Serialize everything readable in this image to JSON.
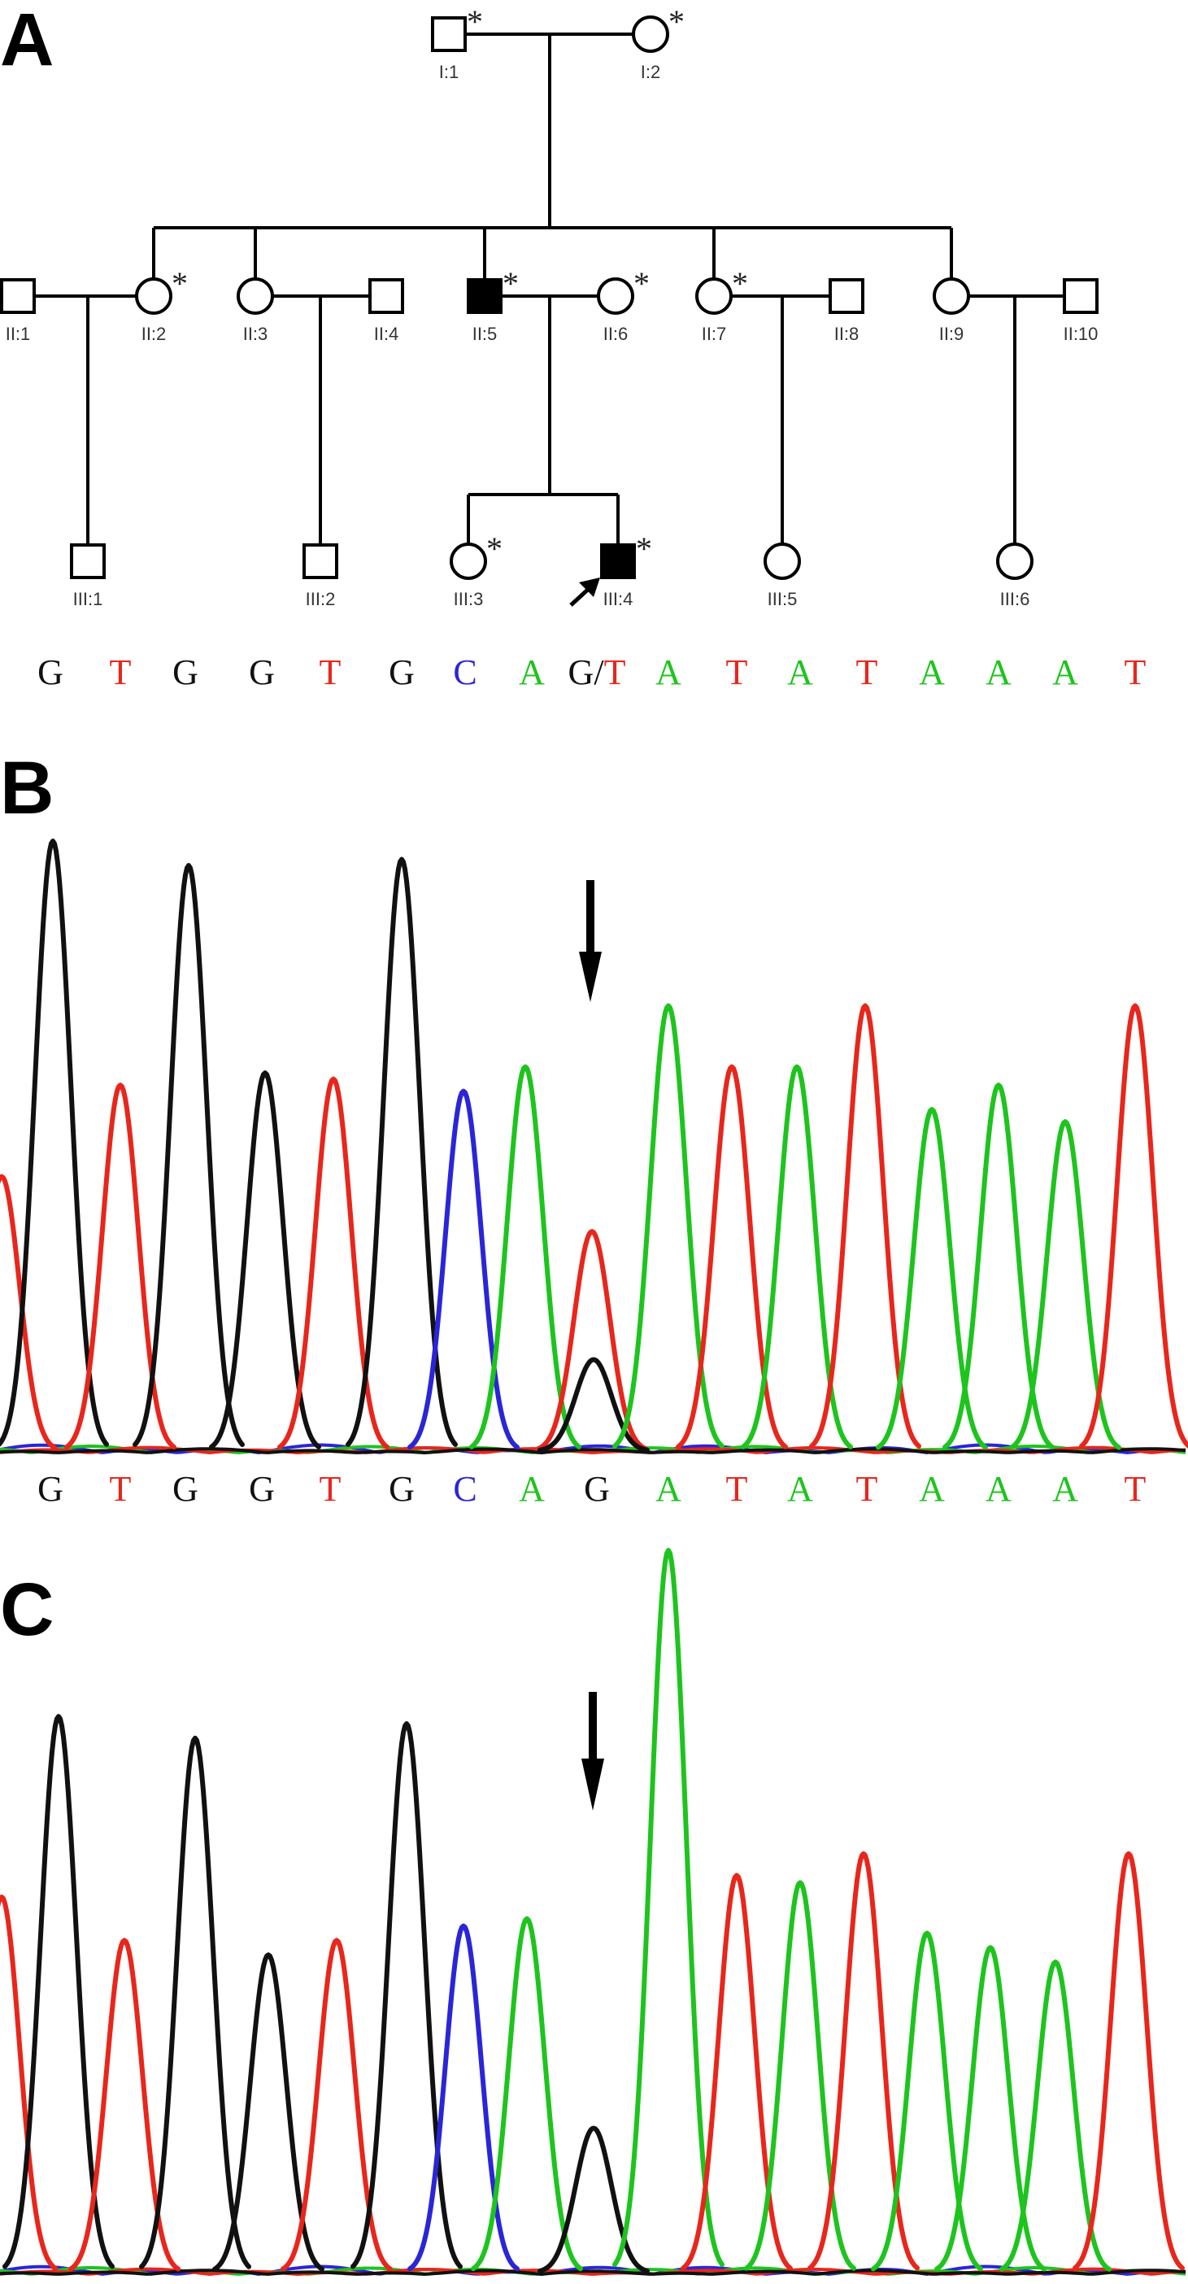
{
  "panels": {
    "a": "A",
    "b": "B",
    "c": "C"
  },
  "colors": {
    "G": "#111111",
    "T": "#e8261c",
    "C": "#2b25d8",
    "A": "#1ec41e"
  },
  "pedigree": {
    "individuals": [
      {
        "id": "I:1",
        "sex": "male",
        "affected": false,
        "star": true
      },
      {
        "id": "I:2",
        "sex": "female",
        "affected": false,
        "star": true
      },
      {
        "id": "II:1",
        "sex": "male",
        "affected": false,
        "star": false
      },
      {
        "id": "II:2",
        "sex": "female",
        "affected": false,
        "star": true
      },
      {
        "id": "II:3",
        "sex": "female",
        "affected": false,
        "star": false
      },
      {
        "id": "II:4",
        "sex": "male",
        "affected": false,
        "star": false
      },
      {
        "id": "II:5",
        "sex": "male",
        "affected": true,
        "star": true
      },
      {
        "id": "II:6",
        "sex": "female",
        "affected": false,
        "star": true
      },
      {
        "id": "II:7",
        "sex": "female",
        "affected": false,
        "star": true
      },
      {
        "id": "II:8",
        "sex": "male",
        "affected": false,
        "star": false
      },
      {
        "id": "II:9",
        "sex": "female",
        "affected": false,
        "star": false
      },
      {
        "id": "II:10",
        "sex": "male",
        "affected": false,
        "star": false
      },
      {
        "id": "III:1",
        "sex": "male",
        "affected": false,
        "star": false
      },
      {
        "id": "III:2",
        "sex": "male",
        "affected": false,
        "star": false
      },
      {
        "id": "III:3",
        "sex": "female",
        "affected": false,
        "star": true
      },
      {
        "id": "III:4",
        "sex": "male",
        "affected": true,
        "star": true,
        "proband": true
      },
      {
        "id": "III:5",
        "sex": "female",
        "affected": false,
        "star": false
      },
      {
        "id": "III:6",
        "sex": "female",
        "affected": false,
        "star": false
      }
    ],
    "star_symbol": "*"
  },
  "sequences": {
    "b": [
      "G",
      "T",
      "G",
      "G",
      "T",
      "G",
      "C",
      "A",
      "G/T",
      "A",
      "T",
      "A",
      "T",
      "A",
      "A",
      "A",
      "T"
    ],
    "c": [
      "G",
      "T",
      "G",
      "G",
      "T",
      "G",
      "C",
      "A",
      "G",
      "A",
      "T",
      "A",
      "T",
      "A",
      "A",
      "A",
      "T"
    ]
  },
  "chromatograms": {
    "b": {
      "peaks": [
        {
          "base": "T",
          "height": 0.45
        },
        {
          "base": "G",
          "height": 1.0
        },
        {
          "base": "T",
          "height": 0.6
        },
        {
          "base": "G",
          "height": 0.96
        },
        {
          "base": "G",
          "height": 0.62
        },
        {
          "base": "T",
          "height": 0.61
        },
        {
          "base": "G",
          "height": 0.97
        },
        {
          "base": "C",
          "height": 0.59
        },
        {
          "base": "A",
          "height": 0.63
        },
        {
          "base": "T",
          "height": 0.36
        },
        {
          "base": "G",
          "height": 0.15
        },
        {
          "base": "A",
          "height": 0.73
        },
        {
          "base": "T",
          "height": 0.63
        },
        {
          "base": "A",
          "height": 0.63
        },
        {
          "base": "T",
          "height": 0.73
        },
        {
          "base": "A",
          "height": 0.56
        },
        {
          "base": "A",
          "height": 0.6
        },
        {
          "base": "A",
          "height": 0.54
        },
        {
          "base": "T",
          "height": 0.73
        }
      ]
    },
    "c": {
      "peaks": [
        {
          "base": "T",
          "height": 0.52
        },
        {
          "base": "G",
          "height": 0.77
        },
        {
          "base": "T",
          "height": 0.46
        },
        {
          "base": "G",
          "height": 0.74
        },
        {
          "base": "G",
          "height": 0.44
        },
        {
          "base": "T",
          "height": 0.46
        },
        {
          "base": "G",
          "height": 0.76
        },
        {
          "base": "C",
          "height": 0.48
        },
        {
          "base": "A",
          "height": 0.49
        },
        {
          "base": "G",
          "height": 0.2
        },
        {
          "base": "A",
          "height": 1.0
        },
        {
          "base": "T",
          "height": 0.55
        },
        {
          "base": "A",
          "height": 0.54
        },
        {
          "base": "T",
          "height": 0.58
        },
        {
          "base": "A",
          "height": 0.47
        },
        {
          "base": "A",
          "height": 0.45
        },
        {
          "base": "A",
          "height": 0.43
        },
        {
          "base": "T",
          "height": 0.58
        }
      ]
    }
  }
}
